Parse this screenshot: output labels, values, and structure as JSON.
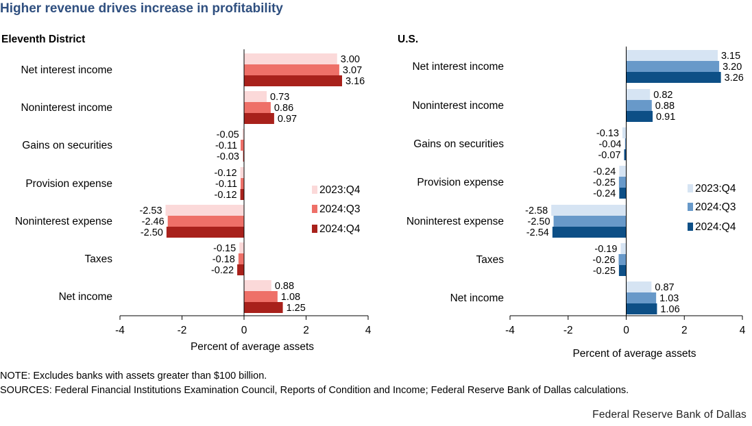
{
  "title": "Higher revenue drives increase in profitability",
  "note": "NOTE: Excludes banks with assets greater than $100 billion.",
  "sources": "SOURCES: Federal Financial Institutions  Examination Council, Reports of Condition and Income; Federal Reserve Bank of Dallas calculations.",
  "credit": "Federal Reserve Bank of Dallas",
  "chart_data": [
    {
      "type": "bar",
      "orientation": "horizontal",
      "title": "Eleventh District",
      "xlabel": "Percent of average assets",
      "ylabel": "",
      "xlim": [
        -4,
        4
      ],
      "xticks": [
        -4,
        -2,
        0,
        2,
        4
      ],
      "categories": [
        "Net interest income",
        "Noninterest income",
        "Gains on securities",
        "Provision expense",
        "Noninterest expense",
        "Taxes",
        "Net income"
      ],
      "series": [
        {
          "name": "2023:Q4",
          "color": "#fbd9d9",
          "values": [
            3.0,
            0.73,
            -0.05,
            -0.12,
            -2.53,
            -0.15,
            0.88
          ]
        },
        {
          "name": "2024:Q3",
          "color": "#ee7068",
          "values": [
            3.07,
            0.86,
            -0.11,
            -0.11,
            -2.46,
            -0.18,
            1.08
          ]
        },
        {
          "name": "2024:Q4",
          "color": "#a8211b",
          "values": [
            3.16,
            0.97,
            -0.03,
            -0.12,
            -2.5,
            -0.22,
            1.25
          ]
        }
      ],
      "legend_position": "right"
    },
    {
      "type": "bar",
      "orientation": "horizontal",
      "title": "U.S.",
      "xlabel": "Percent of average assets",
      "ylabel": "",
      "xlim": [
        -4,
        4
      ],
      "xticks": [
        -4,
        -2,
        0,
        2,
        4
      ],
      "categories": [
        "Net interest income",
        "Noninterest income",
        "Gains on securities",
        "Provision expense",
        "Noninterest expense",
        "Taxes",
        "Net income"
      ],
      "series": [
        {
          "name": "2023:Q4",
          "color": "#d6e4f3",
          "values": [
            3.15,
            0.82,
            -0.13,
            -0.24,
            -2.58,
            -0.19,
            0.87
          ]
        },
        {
          "name": "2024:Q3",
          "color": "#6899c9",
          "values": [
            3.2,
            0.88,
            -0.04,
            -0.25,
            -2.5,
            -0.26,
            1.03
          ]
        },
        {
          "name": "2024:Q4",
          "color": "#0d4f86",
          "values": [
            3.26,
            0.91,
            -0.07,
            -0.24,
            -2.54,
            -0.25,
            1.06
          ]
        }
      ],
      "legend_position": "right"
    }
  ]
}
